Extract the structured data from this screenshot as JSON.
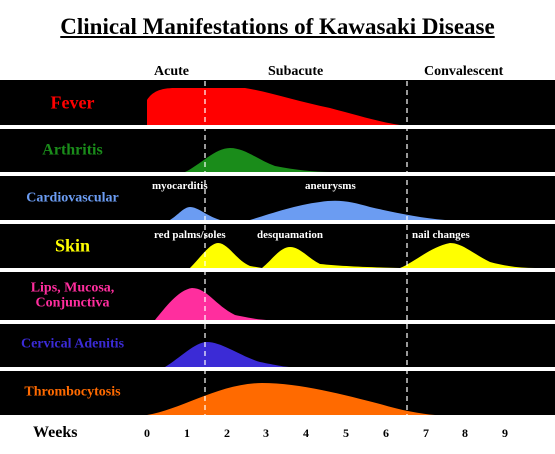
{
  "title": "Clinical Manifestations of Kawasaki Disease",
  "phases": [
    "Acute",
    "Subacute",
    "Convalescent"
  ],
  "x_axis": {
    "label": "Weeks",
    "ticks": [
      "0",
      "1",
      "2",
      "3",
      "4",
      "5",
      "6",
      "7",
      "8",
      "9"
    ]
  },
  "rows": [
    {
      "label": "Fever",
      "color": "#ff0000",
      "label_color": "#ff0000"
    },
    {
      "label": "Arthritis",
      "color": "#1a8c1a",
      "label_color": "#1a8c1a"
    },
    {
      "label": "Cardiovascular",
      "color": "#6b9cf2",
      "label_color": "#6b9cf2"
    },
    {
      "label": "Skin",
      "color": "#ffff00",
      "label_color": "#ffff00"
    },
    {
      "label": "Lips, Mucosa, Conjunctiva",
      "color": "#ff2e9e",
      "label_color": "#ff2e9e"
    },
    {
      "label": "Cervical Adenitis",
      "color": "#3b2bd6",
      "label_color": "#3b2bd6"
    },
    {
      "label": "Thrombocytosis",
      "color": "#ff6a00",
      "label_color": "#ff6a00"
    }
  ],
  "annotations": {
    "myocarditis": "myocarditis",
    "aneurysms": "aneurysms",
    "red_palms_soles": "red palms/soles",
    "desquamation": "desquamation",
    "nail_changes": "nail changes"
  },
  "phase_boundaries_weeks": [
    1.5,
    6.5
  ]
}
